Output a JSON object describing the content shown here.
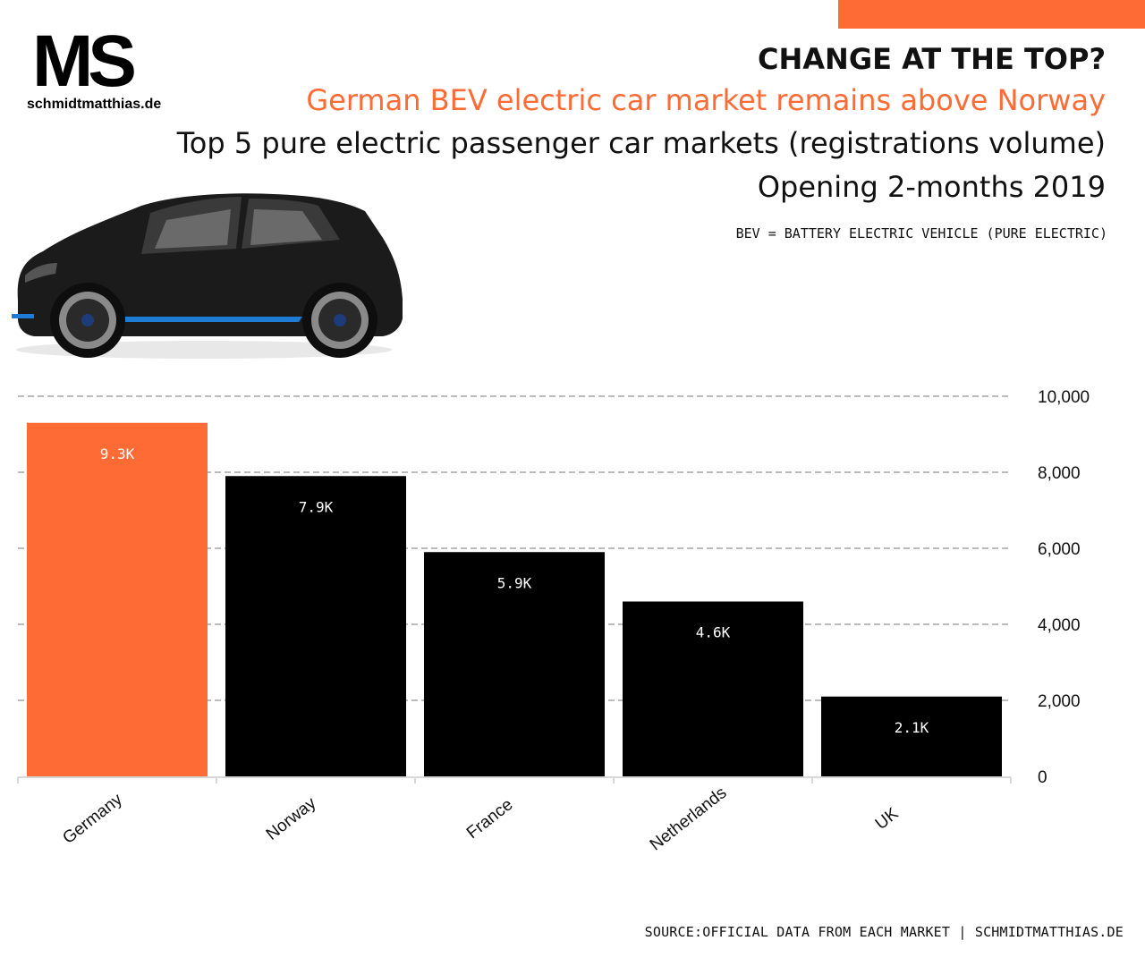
{
  "header": {
    "logo_mark": "MS",
    "logo_site": "schmidtmatthias.de",
    "title": "CHANGE AT THE TOP?",
    "subtitle": "German BEV electric car market remains above Norway",
    "line3": "Top 5 pure electric passenger car markets (registrations volume)",
    "line4": "Opening 2-months 2019",
    "note": "BEV = BATTERY ELECTRIC VEHICLE (PURE ELECTRIC)"
  },
  "illustration": {
    "icon": "electric-car-icon"
  },
  "colors": {
    "accent": "#FF6B35",
    "bar": "#000000",
    "grid": "#BBBBBB",
    "label_on_bar": "#FFFFFF"
  },
  "chart_data": {
    "type": "bar",
    "categories": [
      "Germany",
      "Norway",
      "France",
      "Netherlands",
      "UK"
    ],
    "values": [
      9300,
      7900,
      5900,
      4600,
      2100
    ],
    "data_labels": [
      "9.3K",
      "7.9K",
      "5.9K",
      "4.6K",
      "2.1K"
    ],
    "highlight_index": 0,
    "y_ticks": [
      0,
      2000,
      4000,
      6000,
      8000,
      10000
    ],
    "y_tick_labels": [
      "0",
      "2,000",
      "4,000",
      "6,000",
      "8,000",
      "10,000"
    ],
    "ylim": [
      0,
      10000
    ],
    "y_axis_side": "right",
    "grid": true,
    "title": "",
    "xlabel": "",
    "ylabel": ""
  },
  "footer": {
    "source": "SOURCE:OFFICIAL DATA FROM EACH MARKET | SCHMIDTMATTHIAS.DE"
  }
}
